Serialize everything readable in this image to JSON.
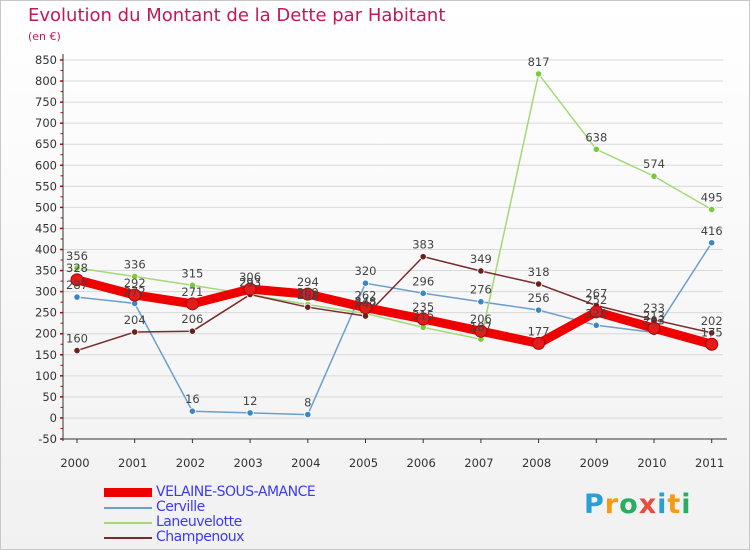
{
  "colors": {
    "title": "#c2185b",
    "axis": "#333333",
    "grid": "#d9d9d9",
    "tick": "#cc0000",
    "legend_text": "#3b3bf2"
  },
  "header": {
    "title": "Evolution du Montant de la Dette par Habitant",
    "unit": "(en €)"
  },
  "logo": {
    "letters": [
      "P",
      "r",
      "o",
      "x",
      "i",
      "t",
      "i"
    ],
    "colors": [
      "#2a9fd6",
      "#f39c12",
      "#27ae60",
      "#e74c3c",
      "#2a9fd6",
      "#f39c12",
      "#27ae60"
    ]
  },
  "chart_data": {
    "type": "line",
    "title": "Evolution du Montant de la Dette par Habitant",
    "ylabel": "(en €)",
    "xlabel": "",
    "x": [
      "2000",
      "2001",
      "2002",
      "2003",
      "2004",
      "2005",
      "2006",
      "2007",
      "2008",
      "2009",
      "2010",
      "2011"
    ],
    "ylim": [
      -50,
      850
    ],
    "yticks": [
      -50,
      0,
      50,
      100,
      150,
      200,
      250,
      300,
      350,
      400,
      450,
      500,
      550,
      600,
      650,
      700,
      750,
      800,
      850
    ],
    "grid": "horizontal",
    "legend": "bottom-left",
    "series": [
      {
        "name": "VELAINE-SOUS-AMANCE",
        "color": "#ee0000",
        "marker": "#e21b1b",
        "width": 9,
        "radius": 6,
        "values": [
          328,
          292,
          271,
          306,
          294,
          262,
          235,
          206,
          177,
          252,
          213,
          175
        ]
      },
      {
        "name": "Cerville",
        "color": "#6a9fcf",
        "marker": "#3a87c8",
        "width": 1.5,
        "radius": 3.2,
        "values": [
          287,
          272,
          16,
          12,
          8,
          320,
          296,
          276,
          256,
          220,
          203,
          416
        ]
      },
      {
        "name": "Laneuvelotte",
        "color": "#a3d977",
        "marker": "#7acb3a",
        "width": 1.5,
        "radius": 3.2,
        "values": [
          356,
          336,
          315,
          293,
          269,
          248,
          215,
          187,
          817,
          638,
          574,
          495
        ]
      },
      {
        "name": "Champenoux",
        "color": "#7a2b2b",
        "marker": "#6b1f1f",
        "width": 1.5,
        "radius": 3.2,
        "values": [
          160,
          204,
          206,
          293,
          263,
          242,
          383,
          349,
          318,
          267,
          233,
          202
        ]
      }
    ]
  }
}
